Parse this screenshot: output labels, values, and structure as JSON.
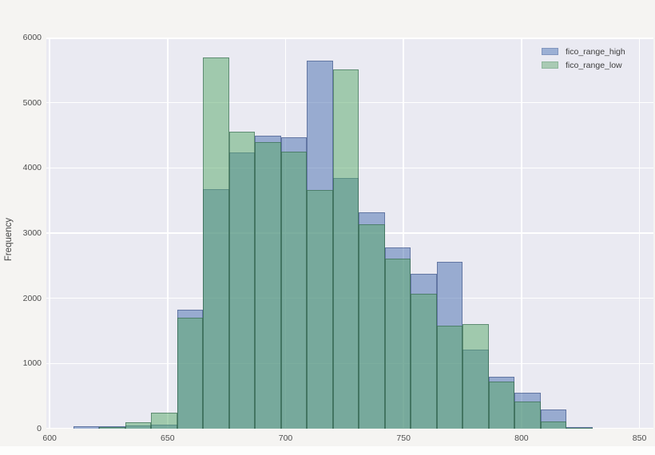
{
  "figure": {
    "background": "#f5f4f2",
    "plot_background": "#eaeaf2",
    "gridline_color": "#ffffff"
  },
  "chart_data": {
    "type": "bar",
    "subtype": "overlapping-histograms",
    "title": "",
    "xlabel": "",
    "ylabel": "Frequency",
    "x_ticks": [
      600,
      650,
      700,
      750,
      800,
      850
    ],
    "y_ticks": [
      0,
      1000,
      2000,
      3000,
      4000,
      5000,
      6000
    ],
    "xlim": [
      598.6,
      855.9
    ],
    "ylim": [
      0,
      6000
    ],
    "grid": true,
    "bin_edges": [
      610,
      621,
      632,
      643,
      654,
      665,
      676,
      687,
      698,
      709,
      720,
      731,
      742,
      753,
      764,
      775,
      786,
      797,
      808,
      819,
      830
    ],
    "series": [
      {
        "name": "fico_range_high",
        "base_color": "#4c72b0",
        "fill": "rgba(76,114,176,0.52)",
        "edge": "rgba(55,75,125,0.55)",
        "values": [
          35,
          40,
          45,
          60,
          1825,
          3675,
          4240,
          4495,
          4470,
          5645,
          3845,
          3320,
          2780,
          2375,
          2560,
          1210,
          795,
          555,
          295,
          25
        ]
      },
      {
        "name": "fico_range_low",
        "base_color": "#55a868",
        "fill": "rgba(85,168,104,0.5)",
        "edge": "rgba(50,100,75,0.6)",
        "values": [
          0,
          25,
          100,
          250,
          1700,
          5695,
          4555,
          4395,
          4250,
          3660,
          5510,
          3135,
          2610,
          2070,
          1580,
          1605,
          720,
          420,
          115,
          10
        ]
      }
    ],
    "legend": {
      "position": "upper-right",
      "entries": [
        {
          "label": "fico_range_high",
          "swatch_fill": "#9cb0d4",
          "swatch_edge": "#8296be"
        },
        {
          "label": "fico_range_low",
          "swatch_fill": "#a9cab4",
          "swatch_edge": "#8fb69c"
        }
      ]
    }
  }
}
